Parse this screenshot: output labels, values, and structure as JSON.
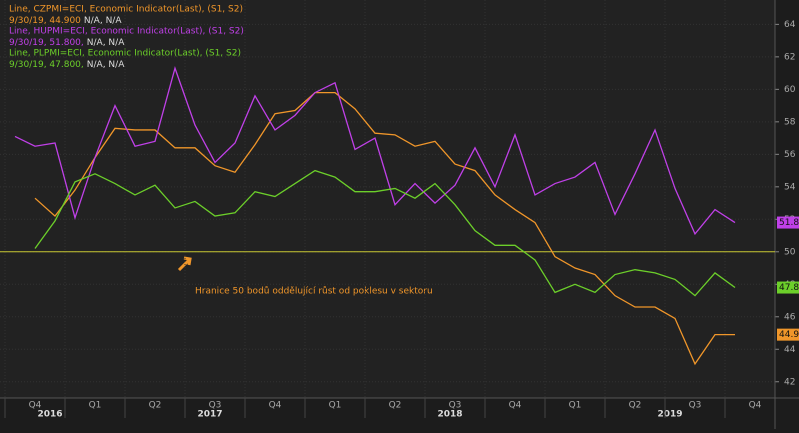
{
  "chart_data": {
    "type": "line",
    "categories": [
      null,
      "Q4",
      null,
      null,
      "Q1",
      null,
      null,
      "Q2",
      null,
      null,
      "Q3",
      null,
      null,
      "Q4",
      null,
      null,
      "Q1",
      null,
      null,
      "Q2",
      null,
      null,
      "Q3",
      null,
      null,
      "Q4",
      null,
      null,
      "Q1",
      null,
      null,
      "Q2",
      null,
      null,
      "Q3",
      null,
      null,
      "Q4"
    ],
    "year_labels": [
      null,
      null,
      "2016",
      null,
      null,
      null,
      null,
      null,
      null,
      null,
      "2017",
      null,
      null,
      null,
      null,
      null,
      null,
      null,
      null,
      null,
      null,
      null,
      "2018",
      null,
      null,
      null,
      null,
      null,
      null,
      null,
      null,
      null,
      null,
      "2019",
      null,
      null,
      null,
      null
    ],
    "series": [
      {
        "name": "Line, CZPMI=ECI, Economic Indicator(Last), (S1, S2)",
        "last_label": "9/30/19, 44.900",
        "last_extra": "N/A, N/A",
        "end_label": "44.9",
        "color": "#f0962a",
        "values": [
          null,
          53.3,
          52.2,
          53.8,
          55.8,
          57.6,
          57.5,
          57.5,
          56.4,
          56.4,
          55.3,
          54.9,
          56.6,
          58.5,
          58.7,
          59.8,
          59.8,
          58.8,
          57.3,
          57.2,
          56.5,
          56.8,
          55.4,
          55.0,
          53.5,
          52.6,
          51.8,
          49.7,
          49.0,
          48.6,
          47.3,
          46.6,
          46.6,
          45.9,
          43.1,
          44.9,
          44.9,
          null
        ]
      },
      {
        "name": "Line, HUPMI=ECI, Economic Indicator(Last), (S1, S2)",
        "last_label": "9/30/19, 51.800,",
        "last_extra": "N/A, N/A",
        "end_label": "51.8",
        "color": "#c040e8",
        "values": [
          57.1,
          56.5,
          56.7,
          52.1,
          55.8,
          59.0,
          56.5,
          56.8,
          61.3,
          57.8,
          55.5,
          56.7,
          59.6,
          57.5,
          58.4,
          59.8,
          60.4,
          56.3,
          57.0,
          52.9,
          54.2,
          53.0,
          54.1,
          56.4,
          54.0,
          57.2,
          53.5,
          54.2,
          54.6,
          55.5,
          52.3,
          54.8,
          57.5,
          53.9,
          51.1,
          52.6,
          51.8,
          null
        ]
      },
      {
        "name": "Line, PLPMI=ECI, Economic Indicator(Last), (S1, S2)",
        "last_label": "9/30/19, 47.800,",
        "last_extra": "N/A, N/A",
        "end_label": "47.8",
        "color": "#6ccf2a",
        "values": [
          null,
          50.2,
          51.9,
          54.3,
          54.8,
          54.2,
          53.5,
          54.1,
          52.7,
          53.1,
          52.2,
          52.4,
          53.7,
          53.4,
          54.2,
          55.0,
          54.6,
          53.7,
          53.7,
          53.9,
          53.3,
          54.2,
          52.9,
          51.3,
          50.4,
          50.4,
          49.5,
          47.5,
          48.0,
          47.5,
          48.6,
          48.9,
          48.7,
          48.3,
          47.3,
          48.7,
          47.8,
          null
        ]
      }
    ],
    "hline": 50,
    "hline_color": "#c8c832",
    "annotation": "Hranice 50 bodů oddělující růst od poklesu v sektoru",
    "ylim": [
      41,
      65.5
    ],
    "yticks": [
      42,
      44,
      46,
      48,
      50,
      52,
      54,
      56,
      58,
      60,
      62,
      64
    ],
    "grid": true
  }
}
